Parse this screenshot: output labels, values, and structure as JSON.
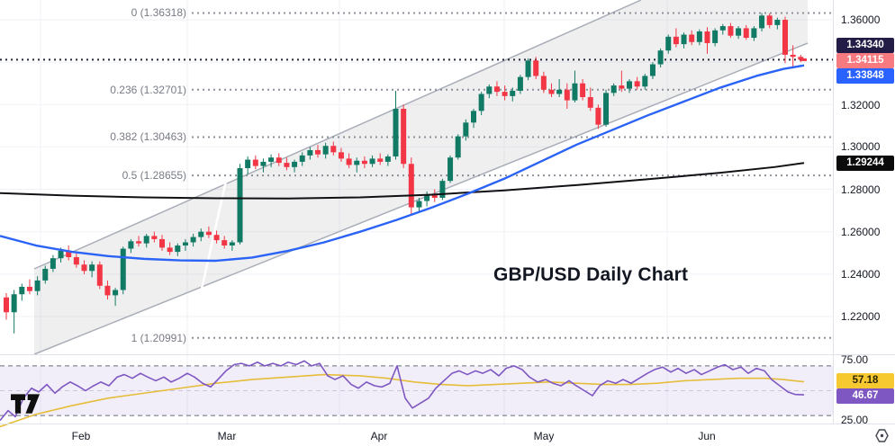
{
  "chart": {
    "title": "GBP/USD Daily Chart"
  },
  "axis": {
    "price_ticks": [
      "1.36000",
      "1.32000",
      "1.30000",
      "1.28000",
      "1.26000",
      "1.24000",
      "1.22000"
    ],
    "rsi_ticks": [
      "75.00",
      "25.00"
    ],
    "badges": {
      "navy": "1.34340",
      "pink": "1.34115",
      "blue": "1.33848",
      "black": "1.29244",
      "rsi_ma": "57.18",
      "rsi": "46.67"
    }
  },
  "chart_data": {
    "type": "candlestick",
    "title": "GBP/USD Daily Chart",
    "timeframe_months": [
      "Feb",
      "Mar",
      "Apr",
      "May",
      "Jun"
    ],
    "months": [
      "Feb",
      "Mar",
      "Apr",
      "May",
      "Jun"
    ],
    "ylim": [
      1.2022,
      1.3693
    ],
    "grid": {
      "price_lines": [
        1.36,
        1.34,
        1.32,
        1.3,
        1.28,
        1.26,
        1.24,
        1.22
      ],
      "month_x": [
        45,
        208,
        377,
        560,
        741
      ]
    },
    "colors": {
      "up": "#117a65",
      "down": "#f23645",
      "blue_ma": "#2a63f6",
      "black_ma": "#101114",
      "rsi": "#7e57c2",
      "rsi_ma": "#e6bd3a",
      "badge_navy": "#221c46",
      "badge_pink": "#f77a80",
      "badge_blue": "#2962ff",
      "badge_black": "#0b0b0b",
      "badge_yellow": "#f7c931",
      "badge_purple": "#7e57c2"
    },
    "fib_levels": [
      {
        "label": "0 (1.36318)",
        "value": 1.36318
      },
      {
        "label": "0.236 (1.32701)",
        "value": 1.32701
      },
      {
        "label": "0.382 (1.30463)",
        "value": 1.30463
      },
      {
        "label": "0.5 (1.28655)",
        "value": 1.28655
      },
      {
        "label": "1 (1.20991)",
        "value": 1.20991
      }
    ],
    "key_level": 1.34115,
    "last_price": 1.34115,
    "candles": [
      [
        1.229,
        1.231,
        1.2185,
        1.222
      ],
      [
        1.222,
        1.2325,
        1.212,
        1.2305
      ],
      [
        1.2305,
        1.2355,
        1.2275,
        1.234
      ],
      [
        1.234,
        1.2375,
        1.2305,
        1.232
      ],
      [
        1.232,
        1.239,
        1.23,
        1.237
      ],
      [
        1.237,
        1.244,
        1.2355,
        1.2425
      ],
      [
        1.2425,
        1.249,
        1.241,
        1.2475
      ],
      [
        1.2475,
        1.2525,
        1.2455,
        1.251
      ],
      [
        1.251,
        1.2535,
        1.2465,
        1.248
      ],
      [
        1.248,
        1.25,
        1.243,
        1.2445
      ],
      [
        1.2445,
        1.2465,
        1.24,
        1.2415
      ],
      [
        1.2415,
        1.246,
        1.2385,
        1.2445
      ],
      [
        1.2445,
        1.246,
        1.233,
        1.2345
      ],
      [
        1.2345,
        1.237,
        1.228,
        1.23
      ],
      [
        1.23,
        1.2335,
        1.225,
        1.2325
      ],
      [
        1.2325,
        1.253,
        1.2305,
        1.252
      ],
      [
        1.252,
        1.2565,
        1.25,
        1.2555
      ],
      [
        1.2555,
        1.258,
        1.253,
        1.2545
      ],
      [
        1.2545,
        1.259,
        1.2525,
        1.258
      ],
      [
        1.258,
        1.26,
        1.255,
        1.2565
      ],
      [
        1.2565,
        1.2585,
        1.251,
        1.2525
      ],
      [
        1.2525,
        1.255,
        1.249,
        1.2505
      ],
      [
        1.2505,
        1.2545,
        1.2485,
        1.2535
      ],
      [
        1.2535,
        1.2565,
        1.251,
        1.255
      ],
      [
        1.255,
        1.259,
        1.253,
        1.2575
      ],
      [
        1.2575,
        1.2615,
        1.2555,
        1.26
      ],
      [
        1.26,
        1.2625,
        1.257,
        1.2585
      ],
      [
        1.2585,
        1.2605,
        1.2545,
        1.256
      ],
      [
        1.256,
        1.258,
        1.252,
        1.2535
      ],
      [
        1.2535,
        1.256,
        1.251,
        1.255
      ],
      [
        1.255,
        1.292,
        1.254,
        1.29
      ],
      [
        1.29,
        1.2955,
        1.287,
        1.294
      ],
      [
        1.294,
        1.296,
        1.2895,
        1.291
      ],
      [
        1.291,
        1.2945,
        1.288,
        1.293
      ],
      [
        1.293,
        1.2965,
        1.2905,
        1.295
      ],
      [
        1.295,
        1.297,
        1.291,
        1.2925
      ],
      [
        1.2925,
        1.295,
        1.289,
        1.2905
      ],
      [
        1.2905,
        1.294,
        1.288,
        1.293
      ],
      [
        1.293,
        1.2975,
        1.291,
        1.296
      ],
      [
        1.296,
        1.3,
        1.294,
        1.2985
      ],
      [
        1.2985,
        1.301,
        1.295,
        1.2965
      ],
      [
        1.2965,
        1.302,
        1.2945,
        1.3005
      ],
      [
        1.3005,
        1.3025,
        1.296,
        1.2975
      ],
      [
        1.2975,
        1.2995,
        1.293,
        1.2945
      ],
      [
        1.2945,
        1.297,
        1.29,
        1.2915
      ],
      [
        1.2915,
        1.295,
        1.288,
        1.2935
      ],
      [
        1.2935,
        1.2955,
        1.29,
        1.292
      ],
      [
        1.292,
        1.296,
        1.2905,
        1.2945
      ],
      [
        1.2945,
        1.297,
        1.2915,
        1.293
      ],
      [
        1.293,
        1.2965,
        1.291,
        1.2955
      ],
      [
        1.2955,
        1.3265,
        1.294,
        1.318
      ],
      [
        1.318,
        1.32,
        1.29,
        1.292
      ],
      [
        1.292,
        1.295,
        1.268,
        1.2715
      ],
      [
        1.2715,
        1.276,
        1.269,
        1.2745
      ],
      [
        1.2745,
        1.279,
        1.272,
        1.2775
      ],
      [
        1.2775,
        1.28,
        1.274,
        1.276
      ],
      [
        1.276,
        1.285,
        1.275,
        1.284
      ],
      [
        1.284,
        1.296,
        1.283,
        1.295
      ],
      [
        1.295,
        1.306,
        1.294,
        1.305
      ],
      [
        1.305,
        1.313,
        1.303,
        1.3115
      ],
      [
        1.3115,
        1.318,
        1.309,
        1.317
      ],
      [
        1.317,
        1.326,
        1.315,
        1.325
      ],
      [
        1.325,
        1.3295,
        1.323,
        1.3285
      ],
      [
        1.3285,
        1.331,
        1.324,
        1.326
      ],
      [
        1.326,
        1.329,
        1.322,
        1.324
      ],
      [
        1.324,
        1.328,
        1.3215,
        1.3265
      ],
      [
        1.3265,
        1.334,
        1.325,
        1.333
      ],
      [
        1.333,
        1.3418,
        1.3315,
        1.3408
      ],
      [
        1.3408,
        1.3425,
        1.332,
        1.3335
      ],
      [
        1.3335,
        1.3355,
        1.3255,
        1.327
      ],
      [
        1.327,
        1.33,
        1.3235,
        1.325
      ],
      [
        1.325,
        1.332,
        1.3235,
        1.327
      ],
      [
        1.327,
        1.33,
        1.318,
        1.322
      ],
      [
        1.322,
        1.336,
        1.321,
        1.33
      ],
      [
        1.33,
        1.332,
        1.322,
        1.3235
      ],
      [
        1.3235,
        1.328,
        1.317,
        1.3185
      ],
      [
        1.3185,
        1.32,
        1.3085,
        1.3105
      ],
      [
        1.3105,
        1.327,
        1.3095,
        1.3255
      ],
      [
        1.3255,
        1.33,
        1.324,
        1.329
      ],
      [
        1.329,
        1.336,
        1.326,
        1.3275
      ],
      [
        1.3275,
        1.332,
        1.3255,
        1.331
      ],
      [
        1.331,
        1.333,
        1.327,
        1.3285
      ],
      [
        1.3285,
        1.3345,
        1.327,
        1.3335
      ],
      [
        1.3335,
        1.34,
        1.332,
        1.339
      ],
      [
        1.339,
        1.3465,
        1.3375,
        1.3455
      ],
      [
        1.3455,
        1.353,
        1.344,
        1.352
      ],
      [
        1.352,
        1.356,
        1.347,
        1.3485
      ],
      [
        1.3485,
        1.354,
        1.3465,
        1.353
      ],
      [
        1.353,
        1.355,
        1.348,
        1.3495
      ],
      [
        1.3495,
        1.3555,
        1.348,
        1.3545
      ],
      [
        1.3545,
        1.3565,
        1.344,
        1.349
      ],
      [
        1.349,
        1.356,
        1.3475,
        1.355
      ],
      [
        1.355,
        1.358,
        1.353,
        1.357
      ],
      [
        1.357,
        1.3585,
        1.3515,
        1.3525
      ],
      [
        1.3525,
        1.357,
        1.351,
        1.356
      ],
      [
        1.356,
        1.3575,
        1.3505,
        1.3515
      ],
      [
        1.3515,
        1.357,
        1.35,
        1.356
      ],
      [
        1.356,
        1.3632,
        1.3545,
        1.362
      ],
      [
        1.362,
        1.363,
        1.356,
        1.3575
      ],
      [
        1.3575,
        1.361,
        1.3555,
        1.36
      ],
      [
        1.36,
        1.3615,
        1.3395,
        1.3435
      ],
      [
        1.3435,
        1.348,
        1.337,
        1.3425
      ],
      [
        1.3425,
        1.3435,
        1.34,
        1.3412
      ]
    ],
    "blue_ma": [
      [
        0,
        1.258
      ],
      [
        40,
        1.2535
      ],
      [
        80,
        1.2505
      ],
      [
        120,
        1.2485
      ],
      [
        160,
        1.2472
      ],
      [
        200,
        1.2465
      ],
      [
        240,
        1.2463
      ],
      [
        280,
        1.2478
      ],
      [
        320,
        1.251
      ],
      [
        360,
        1.255
      ],
      [
        400,
        1.26
      ],
      [
        440,
        1.2655
      ],
      [
        480,
        1.2715
      ],
      [
        520,
        1.278
      ],
      [
        560,
        1.285
      ],
      [
        600,
        1.293
      ],
      [
        640,
        1.301
      ],
      [
        680,
        1.308
      ],
      [
        720,
        1.315
      ],
      [
        760,
        1.3215
      ],
      [
        800,
        1.328
      ],
      [
        840,
        1.3335
      ],
      [
        870,
        1.3368
      ],
      [
        893,
        1.33848
      ]
    ],
    "black_ma": [
      [
        0,
        1.2782
      ],
      [
        80,
        1.277
      ],
      [
        160,
        1.2762
      ],
      [
        240,
        1.2758
      ],
      [
        320,
        1.2757
      ],
      [
        400,
        1.2762
      ],
      [
        480,
        1.2775
      ],
      [
        560,
        1.2795
      ],
      [
        640,
        1.282
      ],
      [
        720,
        1.2848
      ],
      [
        800,
        1.2878
      ],
      [
        860,
        1.2905
      ],
      [
        893,
        1.29244
      ]
    ],
    "annotations": {
      "channel_fill": [
        [
          38,
          299
        ],
        [
          712,
          0
        ],
        [
          897,
          0
        ],
        [
          897,
          48
        ],
        [
          38,
          394
        ]
      ],
      "channel_upper": [
        [
          38,
          299
        ],
        [
          712,
          0
        ]
      ],
      "channel_lower": [
        [
          38,
          394
        ],
        [
          897,
          48
        ]
      ],
      "white_line": [
        [
          222,
          330
        ],
        [
          258,
          170
        ]
      ]
    },
    "rsi": {
      "ylim": [
        25,
        75
      ],
      "bands": [
        70,
        50,
        30
      ],
      "current": 46.67,
      "ma_current": 57.18,
      "line": [
        [
          0,
          26
        ],
        [
          9,
          34
        ],
        [
          17,
          29
        ],
        [
          26,
          44
        ],
        [
          35,
          52
        ],
        [
          43,
          49
        ],
        [
          52,
          55
        ],
        [
          61,
          48
        ],
        [
          69,
          53
        ],
        [
          78,
          57
        ],
        [
          86,
          54
        ],
        [
          95,
          50
        ],
        [
          104,
          54
        ],
        [
          112,
          57
        ],
        [
          121,
          54
        ],
        [
          130,
          61
        ],
        [
          138,
          63
        ],
        [
          147,
          60
        ],
        [
          156,
          64
        ],
        [
          164,
          61
        ],
        [
          173,
          58
        ],
        [
          182,
          61
        ],
        [
          190,
          57
        ],
        [
          199,
          60
        ],
        [
          208,
          64
        ],
        [
          216,
          61
        ],
        [
          225,
          56
        ],
        [
          234,
          53
        ],
        [
          242,
          59
        ],
        [
          251,
          66
        ],
        [
          260,
          71
        ],
        [
          268,
          72
        ],
        [
          277,
          70
        ],
        [
          286,
          73
        ],
        [
          294,
          70
        ],
        [
          303,
          72
        ],
        [
          312,
          70
        ],
        [
          320,
          73
        ],
        [
          329,
          71
        ],
        [
          338,
          74
        ],
        [
          346,
          70
        ],
        [
          355,
          72
        ],
        [
          364,
          62
        ],
        [
          372,
          59
        ],
        [
          381,
          62
        ],
        [
          390,
          55
        ],
        [
          398,
          52
        ],
        [
          407,
          57
        ],
        [
          416,
          54
        ],
        [
          424,
          53
        ],
        [
          433,
          56
        ],
        [
          441,
          70
        ],
        [
          450,
          44
        ],
        [
          458,
          36
        ],
        [
          467,
          40
        ],
        [
          476,
          44
        ],
        [
          484,
          52
        ],
        [
          493,
          58
        ],
        [
          502,
          64
        ],
        [
          510,
          66
        ],
        [
          519,
          63
        ],
        [
          528,
          66
        ],
        [
          536,
          64
        ],
        [
          545,
          67
        ],
        [
          554,
          62
        ],
        [
          562,
          68
        ],
        [
          571,
          70
        ],
        [
          580,
          67
        ],
        [
          588,
          61
        ],
        [
          597,
          57
        ],
        [
          606,
          59
        ],
        [
          614,
          56
        ],
        [
          623,
          54
        ],
        [
          632,
          58
        ],
        [
          640,
          54
        ],
        [
          649,
          50
        ],
        [
          658,
          46
        ],
        [
          666,
          54
        ],
        [
          675,
          58
        ],
        [
          684,
          56
        ],
        [
          692,
          59
        ],
        [
          701,
          56
        ],
        [
          710,
          60
        ],
        [
          719,
          64
        ],
        [
          727,
          67
        ],
        [
          736,
          69
        ],
        [
          745,
          65
        ],
        [
          753,
          68
        ],
        [
          762,
          64
        ],
        [
          771,
          67
        ],
        [
          779,
          63
        ],
        [
          788,
          66
        ],
        [
          797,
          69
        ],
        [
          805,
          71
        ],
        [
          814,
          67
        ],
        [
          823,
          69
        ],
        [
          831,
          64
        ],
        [
          840,
          68
        ],
        [
          849,
          66
        ],
        [
          857,
          59
        ],
        [
          866,
          54
        ],
        [
          875,
          49
        ],
        [
          883,
          47
        ],
        [
          893,
          46.67
        ]
      ],
      "ma": [
        [
          0,
          21
        ],
        [
          40,
          31
        ],
        [
          80,
          38
        ],
        [
          120,
          44
        ],
        [
          160,
          48
        ],
        [
          200,
          52
        ],
        [
          240,
          56
        ],
        [
          280,
          59
        ],
        [
          320,
          61
        ],
        [
          360,
          63
        ],
        [
          400,
          62
        ],
        [
          430,
          60
        ],
        [
          460,
          57
        ],
        [
          490,
          55
        ],
        [
          520,
          54
        ],
        [
          550,
          55
        ],
        [
          580,
          56
        ],
        [
          610,
          57
        ],
        [
          640,
          56
        ],
        [
          670,
          55
        ],
        [
          700,
          55
        ],
        [
          730,
          56
        ],
        [
          760,
          58
        ],
        [
          790,
          59
        ],
        [
          820,
          60
        ],
        [
          850,
          60
        ],
        [
          870,
          59
        ],
        [
          893,
          57.18
        ]
      ]
    }
  }
}
